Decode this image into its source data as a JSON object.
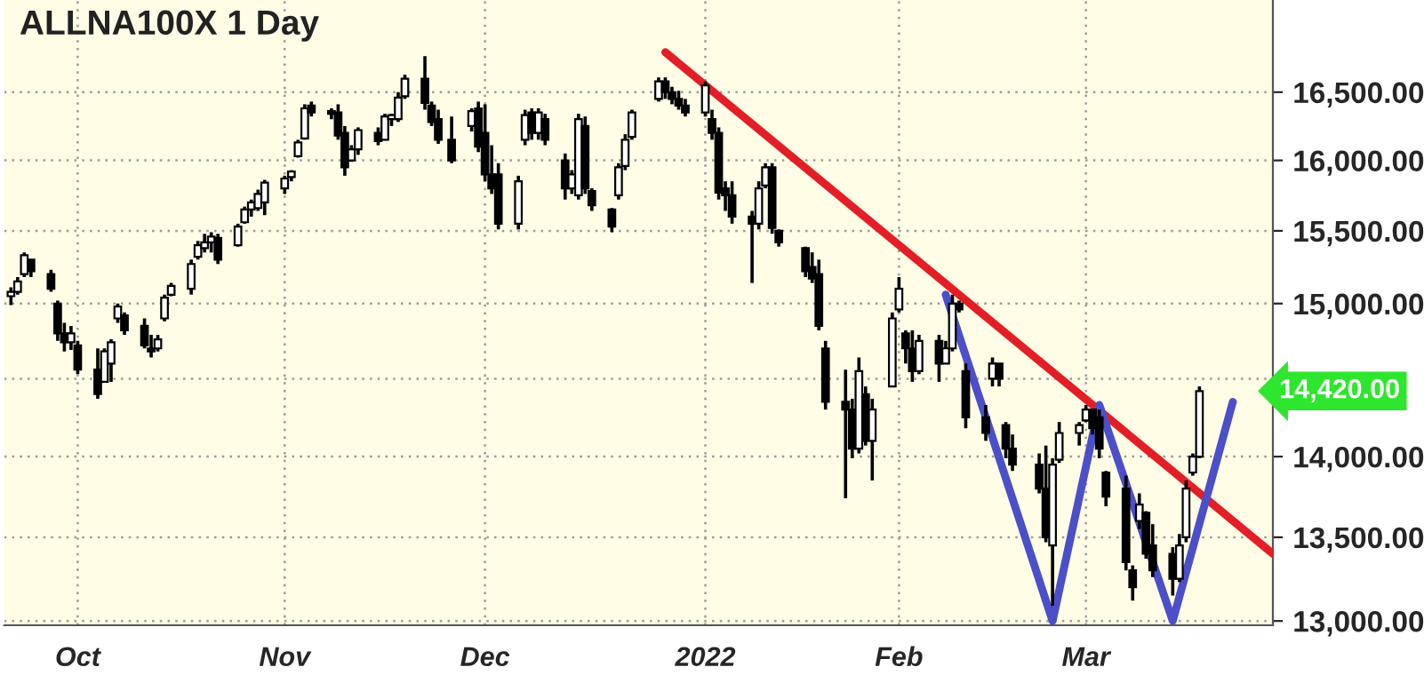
{
  "chart_data": {
    "type": "candlestick",
    "title": "ALLNA100X 1 Day",
    "x": [
      "2021-09-21",
      "2021-09-22",
      "2021-09-23",
      "2021-09-24",
      "2021-09-27",
      "2021-09-28",
      "2021-09-29",
      "2021-09-30",
      "2021-10-01",
      "2021-10-04",
      "2021-10-05",
      "2021-10-06",
      "2021-10-07",
      "2021-10-08",
      "2021-10-11",
      "2021-10-12",
      "2021-10-13",
      "2021-10-14",
      "2021-10-15",
      "2021-10-18",
      "2021-10-19",
      "2021-10-20",
      "2021-10-21",
      "2021-10-22",
      "2021-10-25",
      "2021-10-26",
      "2021-10-27",
      "2021-10-28",
      "2021-10-29",
      "2021-11-01",
      "2021-11-02",
      "2021-11-03",
      "2021-11-04",
      "2021-11-05",
      "2021-11-08",
      "2021-11-09",
      "2021-11-10",
      "2021-11-11",
      "2021-11-12",
      "2021-11-15",
      "2021-11-16",
      "2021-11-17",
      "2021-11-18",
      "2021-11-19",
      "2021-11-22",
      "2021-11-23",
      "2021-11-24",
      "2021-11-26",
      "2021-11-29",
      "2021-11-30",
      "2021-12-01",
      "2021-12-02",
      "2021-12-03",
      "2021-12-06",
      "2021-12-07",
      "2021-12-08",
      "2021-12-09",
      "2021-12-10",
      "2021-12-13",
      "2021-12-14",
      "2021-12-15",
      "2021-12-16",
      "2021-12-17",
      "2021-12-20",
      "2021-12-21",
      "2021-12-22",
      "2021-12-23",
      "2021-12-27",
      "2021-12-28",
      "2021-12-29",
      "2021-12-30",
      "2021-12-31",
      "2022-01-03",
      "2022-01-04",
      "2022-01-05",
      "2022-01-06",
      "2022-01-07",
      "2022-01-10",
      "2022-01-11",
      "2022-01-12",
      "2022-01-13",
      "2022-01-14",
      "2022-01-18",
      "2022-01-19",
      "2022-01-20",
      "2022-01-21",
      "2022-01-24",
      "2022-01-25",
      "2022-01-26",
      "2022-01-27",
      "2022-01-28",
      "2022-01-31",
      "2022-02-01",
      "2022-02-02",
      "2022-02-03",
      "2022-02-04",
      "2022-02-07",
      "2022-02-08",
      "2022-02-09",
      "2022-02-10",
      "2022-02-11",
      "2022-02-14",
      "2022-02-15",
      "2022-02-16",
      "2022-02-17",
      "2022-02-18",
      "2022-02-22",
      "2022-02-23",
      "2022-02-24",
      "2022-02-25",
      "2022-02-28",
      "2022-03-01",
      "2022-03-02",
      "2022-03-03",
      "2022-03-04",
      "2022-03-07",
      "2022-03-08",
      "2022-03-09",
      "2022-03-10",
      "2022-03-11",
      "2022-03-14",
      "2022-03-15",
      "2022-03-16",
      "2022-03-17",
      "2022-03-18"
    ],
    "ohlc": [
      [
        15050,
        15110,
        14990,
        15080
      ],
      [
        15080,
        15180,
        15060,
        15150
      ],
      [
        15200,
        15350,
        15180,
        15330
      ],
      [
        15300,
        15300,
        15180,
        15220
      ],
      [
        15200,
        15230,
        15080,
        15100
      ],
      [
        15000,
        15020,
        14750,
        14800
      ],
      [
        14800,
        14870,
        14680,
        14740
      ],
      [
        14740,
        14850,
        14690,
        14800
      ],
      [
        14720,
        14750,
        14530,
        14560
      ],
      [
        14560,
        14700,
        14370,
        14400
      ],
      [
        14480,
        14700,
        14480,
        14680
      ],
      [
        14600,
        14760,
        14480,
        14740
      ],
      [
        14900,
        15000,
        14870,
        14980
      ],
      [
        14920,
        14940,
        14790,
        14820
      ],
      [
        14850,
        14900,
        14700,
        14720
      ],
      [
        14700,
        14790,
        14640,
        14680
      ],
      [
        14700,
        14790,
        14680,
        14760
      ],
      [
        14900,
        15060,
        14880,
        15040
      ],
      [
        15060,
        15140,
        15050,
        15120
      ],
      [
        15100,
        15300,
        15060,
        15270
      ],
      [
        15320,
        15430,
        15300,
        15400
      ],
      [
        15380,
        15480,
        15350,
        15420
      ],
      [
        15420,
        15490,
        15350,
        15460
      ],
      [
        15450,
        15480,
        15270,
        15300
      ],
      [
        15400,
        15550,
        15390,
        15530
      ],
      [
        15560,
        15670,
        15550,
        15650
      ],
      [
        15650,
        15720,
        15600,
        15700
      ],
      [
        15660,
        15790,
        15640,
        15760
      ],
      [
        15700,
        15860,
        15610,
        15840
      ],
      [
        15800,
        15890,
        15760,
        15870
      ],
      [
        15880,
        15930,
        15850,
        15920
      ],
      [
        16030,
        16150,
        16020,
        16130
      ],
      [
        16160,
        16410,
        16150,
        16380
      ],
      [
        16400,
        16430,
        16320,
        16350
      ],
      [
        16360,
        16380,
        16300,
        16340
      ],
      [
        16350,
        16410,
        16150,
        16180
      ],
      [
        16200,
        16250,
        15890,
        15950
      ],
      [
        16000,
        16110,
        15990,
        16080
      ],
      [
        16080,
        16240,
        16040,
        16220
      ],
      [
        16200,
        16240,
        16110,
        16140
      ],
      [
        16150,
        16340,
        16150,
        16320
      ],
      [
        16300,
        16340,
        16250,
        16330
      ],
      [
        16300,
        16500,
        16280,
        16460
      ],
      [
        16470,
        16630,
        16450,
        16600
      ],
      [
        16600,
        16770,
        16370,
        16420
      ],
      [
        16400,
        16430,
        16250,
        16280
      ],
      [
        16300,
        16370,
        16120,
        16150
      ],
      [
        16150,
        16320,
        15980,
        16000
      ],
      [
        16250,
        16380,
        16210,
        16360
      ],
      [
        16380,
        16430,
        16060,
        16100
      ],
      [
        16200,
        16410,
        15850,
        15900
      ],
      [
        15900,
        16110,
        15760,
        15800
      ],
      [
        15900,
        15980,
        15510,
        15550
      ],
      [
        15550,
        15890,
        15510,
        15850
      ],
      [
        16150,
        16370,
        16110,
        16330
      ],
      [
        16350,
        16380,
        16150,
        16200
      ],
      [
        16200,
        16380,
        16150,
        16350
      ],
      [
        16300,
        16340,
        16110,
        16150
      ],
      [
        16000,
        16050,
        15720,
        15800
      ],
      [
        15800,
        15930,
        15760,
        15900
      ],
      [
        15750,
        16340,
        15720,
        16300
      ],
      [
        16250,
        16320,
        15760,
        15800
      ],
      [
        15780,
        15800,
        15640,
        15680
      ],
      [
        15650,
        15660,
        15490,
        15530
      ],
      [
        15750,
        15980,
        15720,
        15950
      ],
      [
        15960,
        16190,
        15930,
        16150
      ],
      [
        16170,
        16370,
        16150,
        16350
      ],
      [
        16450,
        16610,
        16430,
        16580
      ],
      [
        16580,
        16610,
        16450,
        16500
      ],
      [
        16500,
        16540,
        16410,
        16450
      ],
      [
        16450,
        16510,
        16370,
        16400
      ],
      [
        16400,
        16450,
        16320,
        16350
      ],
      [
        16350,
        16580,
        16320,
        16550
      ],
      [
        16300,
        16370,
        16150,
        16200
      ],
      [
        16200,
        16240,
        15720,
        15770
      ],
      [
        15800,
        15850,
        15640,
        15750
      ],
      [
        15750,
        15850,
        15550,
        15600
      ],
      [
        15600,
        15640,
        15140,
        15550
      ],
      [
        15550,
        15850,
        15510,
        15800
      ],
      [
        15820,
        15980,
        15800,
        15950
      ],
      [
        15950,
        15980,
        15480,
        15520
      ],
      [
        15500,
        15510,
        15390,
        15420
      ],
      [
        15380,
        15390,
        15180,
        15220
      ],
      [
        15250,
        15350,
        15140,
        15170
      ],
      [
        15200,
        15300,
        14820,
        14850
      ],
      [
        14700,
        14750,
        14300,
        14350
      ],
      [
        14350,
        14560,
        13740,
        14300
      ],
      [
        14300,
        14370,
        13990,
        14050
      ],
      [
        14050,
        14640,
        14020,
        14550
      ],
      [
        14400,
        14450,
        14070,
        14100
      ],
      [
        14100,
        14370,
        13850,
        14300
      ],
      [
        14450,
        14940,
        14450,
        14900
      ],
      [
        14960,
        15180,
        14940,
        15100
      ],
      [
        14800,
        14820,
        14600,
        14700
      ],
      [
        14700,
        14820,
        14480,
        14550
      ],
      [
        14550,
        14790,
        14530,
        14750
      ],
      [
        14750,
        14790,
        14480,
        14600
      ],
      [
        14600,
        14750,
        14600,
        14700
      ],
      [
        14700,
        15060,
        14680,
        15000
      ],
      [
        15000,
        15020,
        14940,
        14960
      ],
      [
        14550,
        14600,
        14180,
        14250
      ],
      [
        14250,
        14330,
        14100,
        14150
      ],
      [
        14500,
        14640,
        14450,
        14600
      ],
      [
        14600,
        14600,
        14450,
        14500
      ],
      [
        14200,
        14220,
        13990,
        14050
      ],
      [
        14050,
        14140,
        13910,
        13950
      ],
      [
        13950,
        14020,
        13770,
        13800
      ],
      [
        13800,
        14070,
        13470,
        13500
      ],
      [
        13450,
        13990,
        13090,
        13950
      ],
      [
        13980,
        14220,
        13960,
        14150
      ],
      [
        14150,
        14220,
        14070,
        14200
      ],
      [
        14230,
        14330,
        14220,
        14300
      ],
      [
        14300,
        14300,
        14140,
        14180
      ],
      [
        14250,
        14300,
        13990,
        14050
      ],
      [
        13900,
        13910,
        13690,
        13750
      ],
      [
        13800,
        13880,
        13300,
        13350
      ],
      [
        13300,
        13330,
        13120,
        13200
      ],
      [
        13600,
        13770,
        13550,
        13700
      ],
      [
        13650,
        13660,
        13370,
        13400
      ],
      [
        13450,
        13580,
        13260,
        13300
      ],
      [
        13400,
        13440,
        13150,
        13250
      ],
      [
        13250,
        13520,
        13230,
        13450
      ],
      [
        13500,
        13850,
        13470,
        13800
      ],
      [
        13900,
        14020,
        13880,
        14000
      ],
      [
        14000,
        14450,
        13990,
        14420
      ]
    ],
    "series": [
      {
        "type": "line",
        "color": "#e41e26",
        "x": [
          "2021-12-28",
          "2022-03-29"
        ],
        "values": [
          16800,
          13400
        ]
      },
      {
        "type": "line",
        "color": "#4b4fc9",
        "x": [
          "2022-02-08",
          "2022-02-24",
          "2022-03-03",
          "2022-03-14",
          "2022-03-23"
        ],
        "values": [
          15060,
          13000,
          14330,
          13000,
          14350
        ]
      }
    ],
    "annotations": [
      "14,420.00"
    ],
    "log": true,
    "xlim": [
      "2021-09-20",
      "2022-03-29"
    ],
    "xticks": [
      {
        "value": "2021-10-01",
        "label": "Oct"
      },
      {
        "value": "2021-11-01",
        "label": "Nov"
      },
      {
        "value": "2021-12-01",
        "label": "Dec"
      },
      {
        "value": "2022-01-03",
        "label": "2022"
      },
      {
        "value": "2022-02-01",
        "label": "Feb"
      },
      {
        "value": "2022-03-01",
        "label": "Mar"
      }
    ],
    "ylim": [
      12975,
      17200
    ],
    "yticks": [
      {
        "value": 13000,
        "label": "13,000.00"
      },
      {
        "value": 13500,
        "label": "13,500.00"
      },
      {
        "value": 14000,
        "label": "14,000.00"
      },
      {
        "value": 14500,
        "label": null
      },
      {
        "value": 15000,
        "label": "15,000.00"
      },
      {
        "value": 15500,
        "label": "15,500.00"
      },
      {
        "value": 16000,
        "label": "16,000.00"
      },
      {
        "value": 16500,
        "label": "16,500.00"
      }
    ],
    "grid": true
  }
}
